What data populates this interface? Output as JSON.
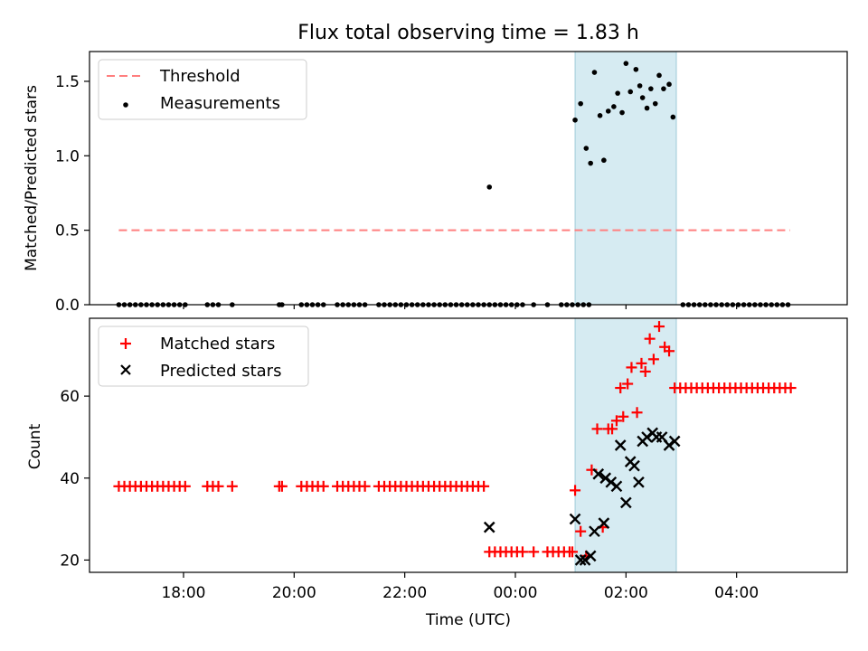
{
  "chart_data": [
    {
      "type": "scatter",
      "title": "Flux total observing time = 1.83 h",
      "xlabel": "",
      "ylabel": "Matched/Predicted stars",
      "ylim": [
        0,
        1.7
      ],
      "yticks": [
        0.0,
        0.5,
        1.0,
        1.5
      ],
      "ytick_labels": [
        "0.0",
        "0.5",
        "1.0",
        "1.5"
      ],
      "xlim_hours": [
        16.3,
        30.0
      ],
      "shaded_span_hours": [
        25.08,
        26.91
      ],
      "legend": [
        {
          "label": "Threshold",
          "style": "dashed-line",
          "color": "#ff7f7f"
        },
        {
          "label": "Measurements",
          "style": "dot",
          "color": "#000000"
        }
      ],
      "threshold": {
        "y": 0.5,
        "x_start": 16.83,
        "x_end": 28.97
      },
      "measurements": [
        [
          16.83,
          0
        ],
        [
          16.93,
          0
        ],
        [
          17.03,
          0
        ],
        [
          17.13,
          0
        ],
        [
          17.23,
          0
        ],
        [
          17.33,
          0
        ],
        [
          17.43,
          0
        ],
        [
          17.53,
          0
        ],
        [
          17.63,
          0
        ],
        [
          17.73,
          0
        ],
        [
          17.83,
          0
        ],
        [
          17.93,
          0
        ],
        [
          18.03,
          0
        ],
        [
          18.43,
          0
        ],
        [
          18.53,
          0
        ],
        [
          18.63,
          0
        ],
        [
          18.88,
          0
        ],
        [
          19.73,
          0
        ],
        [
          19.78,
          0
        ],
        [
          20.13,
          0
        ],
        [
          20.23,
          0
        ],
        [
          20.33,
          0
        ],
        [
          20.43,
          0
        ],
        [
          20.53,
          0
        ],
        [
          20.78,
          0
        ],
        [
          20.88,
          0
        ],
        [
          20.98,
          0
        ],
        [
          21.08,
          0
        ],
        [
          21.18,
          0
        ],
        [
          21.28,
          0
        ],
        [
          21.53,
          0
        ],
        [
          21.63,
          0
        ],
        [
          21.73,
          0
        ],
        [
          21.83,
          0
        ],
        [
          21.93,
          0
        ],
        [
          22.03,
          0
        ],
        [
          22.13,
          0
        ],
        [
          22.23,
          0
        ],
        [
          22.33,
          0
        ],
        [
          22.43,
          0
        ],
        [
          22.53,
          0
        ],
        [
          22.63,
          0
        ],
        [
          22.73,
          0
        ],
        [
          22.83,
          0
        ],
        [
          22.93,
          0
        ],
        [
          23.03,
          0
        ],
        [
          23.13,
          0
        ],
        [
          23.23,
          0
        ],
        [
          23.33,
          0
        ],
        [
          23.43,
          0
        ],
        [
          23.53,
          0
        ],
        [
          23.63,
          0
        ],
        [
          23.73,
          0
        ],
        [
          23.83,
          0
        ],
        [
          23.93,
          0
        ],
        [
          24.03,
          0
        ],
        [
          24.13,
          0
        ],
        [
          24.33,
          0
        ],
        [
          24.58,
          0
        ],
        [
          24.83,
          0
        ],
        [
          24.93,
          0
        ],
        [
          25.03,
          0
        ],
        [
          25.13,
          0
        ],
        [
          25.23,
          0
        ],
        [
          25.33,
          0
        ],
        [
          23.53,
          0.79
        ],
        [
          25.08,
          1.24
        ],
        [
          25.18,
          1.35
        ],
        [
          25.28,
          1.05
        ],
        [
          25.36,
          0.95
        ],
        [
          25.43,
          1.56
        ],
        [
          25.53,
          1.27
        ],
        [
          25.6,
          0.97
        ],
        [
          25.68,
          1.3
        ],
        [
          25.78,
          1.33
        ],
        [
          25.85,
          1.42
        ],
        [
          25.93,
          1.29
        ],
        [
          26.0,
          1.62
        ],
        [
          26.08,
          1.43
        ],
        [
          26.18,
          1.58
        ],
        [
          26.25,
          1.47
        ],
        [
          26.3,
          1.39
        ],
        [
          26.38,
          1.32
        ],
        [
          26.45,
          1.45
        ],
        [
          26.53,
          1.35
        ],
        [
          26.6,
          1.54
        ],
        [
          26.68,
          1.45
        ],
        [
          26.78,
          1.48
        ],
        [
          26.85,
          1.26
        ],
        [
          27.03,
          0
        ],
        [
          27.13,
          0
        ],
        [
          27.23,
          0
        ],
        [
          27.33,
          0
        ],
        [
          27.43,
          0
        ],
        [
          27.53,
          0
        ],
        [
          27.63,
          0
        ],
        [
          27.73,
          0
        ],
        [
          27.83,
          0
        ],
        [
          27.93,
          0
        ],
        [
          28.03,
          0
        ],
        [
          28.13,
          0
        ],
        [
          28.23,
          0
        ],
        [
          28.33,
          0
        ],
        [
          28.43,
          0
        ],
        [
          28.53,
          0
        ],
        [
          28.63,
          0
        ],
        [
          28.73,
          0
        ],
        [
          28.83,
          0
        ],
        [
          28.93,
          0
        ]
      ]
    },
    {
      "type": "scatter",
      "xlabel": "Time (UTC)",
      "ylabel": "Count",
      "ylim": [
        17,
        79
      ],
      "yticks": [
        20,
        40,
        60
      ],
      "ytick_labels": [
        "20",
        "40",
        "60"
      ],
      "xticks_hours": [
        18,
        20,
        22,
        24,
        26,
        28
      ],
      "xtick_labels": [
        "18:00",
        "20:00",
        "22:00",
        "00:00",
        "02:00",
        "04:00"
      ],
      "xlim_hours": [
        16.3,
        30.0
      ],
      "shaded_span_hours": [
        25.08,
        26.91
      ],
      "legend": [
        {
          "label": "Matched stars",
          "marker": "plus",
          "color": "#ff0000"
        },
        {
          "label": "Predicted stars",
          "marker": "x",
          "color": "#000000"
        }
      ],
      "series": [
        {
          "name": "Matched stars",
          "points": [
            [
              16.83,
              38
            ],
            [
              16.93,
              38
            ],
            [
              17.03,
              38
            ],
            [
              17.13,
              38
            ],
            [
              17.23,
              38
            ],
            [
              17.33,
              38
            ],
            [
              17.43,
              38
            ],
            [
              17.53,
              38
            ],
            [
              17.63,
              38
            ],
            [
              17.73,
              38
            ],
            [
              17.83,
              38
            ],
            [
              17.93,
              38
            ],
            [
              18.03,
              38
            ],
            [
              18.43,
              38
            ],
            [
              18.53,
              38
            ],
            [
              18.63,
              38
            ],
            [
              18.88,
              38
            ],
            [
              19.73,
              38
            ],
            [
              19.78,
              38
            ],
            [
              20.13,
              38
            ],
            [
              20.23,
              38
            ],
            [
              20.33,
              38
            ],
            [
              20.43,
              38
            ],
            [
              20.53,
              38
            ],
            [
              20.78,
              38
            ],
            [
              20.88,
              38
            ],
            [
              20.98,
              38
            ],
            [
              21.08,
              38
            ],
            [
              21.18,
              38
            ],
            [
              21.28,
              38
            ],
            [
              21.53,
              38
            ],
            [
              21.63,
              38
            ],
            [
              21.73,
              38
            ],
            [
              21.83,
              38
            ],
            [
              21.93,
              38
            ],
            [
              22.03,
              38
            ],
            [
              22.13,
              38
            ],
            [
              22.23,
              38
            ],
            [
              22.33,
              38
            ],
            [
              22.43,
              38
            ],
            [
              22.53,
              38
            ],
            [
              22.63,
              38
            ],
            [
              22.73,
              38
            ],
            [
              22.83,
              38
            ],
            [
              22.93,
              38
            ],
            [
              23.03,
              38
            ],
            [
              23.13,
              38
            ],
            [
              23.23,
              38
            ],
            [
              23.33,
              38
            ],
            [
              23.43,
              38
            ],
            [
              23.53,
              22
            ],
            [
              23.63,
              22
            ],
            [
              23.73,
              22
            ],
            [
              23.83,
              22
            ],
            [
              23.93,
              22
            ],
            [
              24.03,
              22
            ],
            [
              24.13,
              22
            ],
            [
              24.33,
              22
            ],
            [
              24.58,
              22
            ],
            [
              24.68,
              22
            ],
            [
              24.78,
              22
            ],
            [
              24.88,
              22
            ],
            [
              24.98,
              22
            ],
            [
              25.03,
              22
            ],
            [
              25.08,
              37
            ],
            [
              25.18,
              27
            ],
            [
              25.28,
              21
            ],
            [
              25.38,
              42
            ],
            [
              25.48,
              52
            ],
            [
              25.58,
              28
            ],
            [
              25.68,
              52
            ],
            [
              25.75,
              52
            ],
            [
              25.83,
              54
            ],
            [
              25.9,
              62
            ],
            [
              25.95,
              55
            ],
            [
              26.03,
              63
            ],
            [
              26.1,
              67
            ],
            [
              26.2,
              56
            ],
            [
              26.28,
              68
            ],
            [
              26.35,
              66
            ],
            [
              26.43,
              74
            ],
            [
              26.5,
              69
            ],
            [
              26.6,
              77
            ],
            [
              26.7,
              72
            ],
            [
              26.78,
              71
            ],
            [
              26.88,
              62
            ],
            [
              26.98,
              62
            ],
            [
              27.08,
              62
            ],
            [
              27.18,
              62
            ],
            [
              27.28,
              62
            ],
            [
              27.38,
              62
            ],
            [
              27.48,
              62
            ],
            [
              27.58,
              62
            ],
            [
              27.68,
              62
            ],
            [
              27.78,
              62
            ],
            [
              27.88,
              62
            ],
            [
              27.98,
              62
            ],
            [
              28.08,
              62
            ],
            [
              28.18,
              62
            ],
            [
              28.28,
              62
            ],
            [
              28.38,
              62
            ],
            [
              28.48,
              62
            ],
            [
              28.58,
              62
            ],
            [
              28.68,
              62
            ],
            [
              28.78,
              62
            ],
            [
              28.88,
              62
            ],
            [
              28.98,
              62
            ]
          ]
        },
        {
          "name": "Predicted stars",
          "points": [
            [
              23.53,
              28
            ],
            [
              25.08,
              30
            ],
            [
              25.18,
              20
            ],
            [
              25.26,
              20
            ],
            [
              25.36,
              21
            ],
            [
              25.43,
              27
            ],
            [
              25.5,
              41
            ],
            [
              25.6,
              29
            ],
            [
              25.63,
              40
            ],
            [
              25.73,
              39
            ],
            [
              25.83,
              38
            ],
            [
              25.9,
              48
            ],
            [
              26.0,
              34
            ],
            [
              26.08,
              44
            ],
            [
              26.15,
              43
            ],
            [
              26.23,
              39
            ],
            [
              26.3,
              49
            ],
            [
              26.38,
              50
            ],
            [
              26.48,
              51
            ],
            [
              26.55,
              50
            ],
            [
              26.65,
              50
            ],
            [
              26.78,
              48
            ],
            [
              26.88,
              49
            ]
          ]
        }
      ]
    }
  ]
}
